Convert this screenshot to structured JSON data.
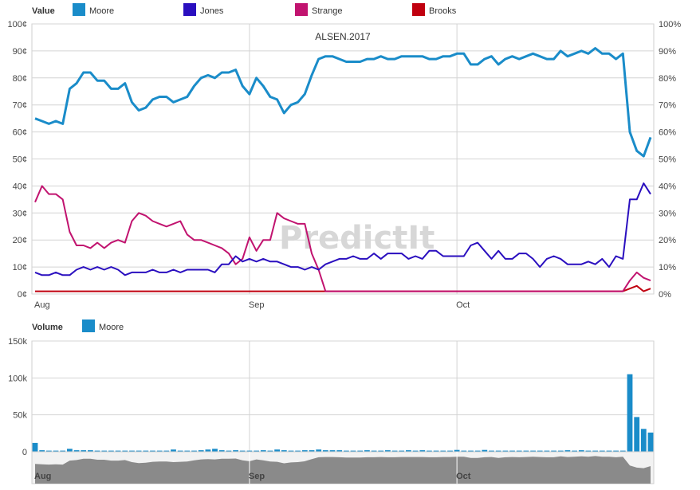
{
  "chart_data": [
    {
      "type": "line",
      "title": "ALSEN.2017",
      "legend_title": "Value",
      "legend_position": "top-left",
      "watermark": "PredictIt",
      "grid": true,
      "ylim": [
        0,
        100
      ],
      "y_ticks_left": [
        "0¢",
        "10¢",
        "20¢",
        "30¢",
        "40¢",
        "50¢",
        "60¢",
        "70¢",
        "80¢",
        "90¢",
        "100¢"
      ],
      "y_ticks_right": [
        "0%",
        "10%",
        "20%",
        "30%",
        "40%",
        "50%",
        "60%",
        "70%",
        "80%",
        "90%",
        "100%"
      ],
      "x_labels": [
        {
          "label": "Aug",
          "x": 0
        },
        {
          "label": "Sep",
          "x": 31
        },
        {
          "label": "Oct",
          "x": 61
        }
      ],
      "xlim": [
        0,
        89
      ],
      "series": [
        {
          "name": "Moore",
          "color": "#1a8cc9",
          "width": 3,
          "values": [
            65,
            64,
            63,
            64,
            63,
            76,
            78,
            82,
            82,
            79,
            79,
            76,
            76,
            78,
            71,
            68,
            69,
            72,
            73,
            73,
            71,
            72,
            73,
            77,
            80,
            81,
            80,
            82,
            82,
            83,
            77,
            74,
            80,
            77,
            73,
            72,
            67,
            70,
            71,
            74,
            81,
            87,
            88,
            88,
            87,
            86,
            86,
            86,
            87,
            87,
            88,
            87,
            87,
            88,
            88,
            88,
            88,
            87,
            87,
            88,
            88,
            89,
            89,
            85,
            85,
            87,
            88,
            85,
            87,
            88,
            87,
            88,
            89,
            88,
            87,
            87,
            90,
            88,
            89,
            90,
            89,
            91,
            89,
            89,
            87,
            89,
            60,
            53,
            51,
            58
          ]
        },
        {
          "name": "Jones",
          "color": "#2a0fbf",
          "width": 2,
          "values": [
            8,
            7,
            7,
            8,
            7,
            7,
            9,
            10,
            9,
            10,
            9,
            10,
            9,
            7,
            8,
            8,
            8,
            9,
            8,
            8,
            9,
            8,
            9,
            9,
            9,
            9,
            8,
            11,
            11,
            14,
            12,
            13,
            12,
            13,
            12,
            12,
            11,
            10,
            10,
            9,
            10,
            9,
            11,
            12,
            13,
            13,
            14,
            13,
            13,
            15,
            13,
            15,
            15,
            15,
            13,
            14,
            13,
            16,
            16,
            14,
            14,
            14,
            14,
            18,
            19,
            16,
            13,
            16,
            13,
            13,
            15,
            15,
            13,
            10,
            13,
            14,
            13,
            11,
            11,
            11,
            12,
            11,
            13,
            10,
            14,
            13,
            35,
            35,
            41,
            37
          ]
        },
        {
          "name": "Strange",
          "color": "#c1136f",
          "width": 2,
          "values": [
            34,
            40,
            37,
            37,
            35,
            23,
            18,
            18,
            17,
            19,
            17,
            19,
            20,
            19,
            27,
            30,
            29,
            27,
            26,
            25,
            26,
            27,
            22,
            20,
            20,
            19,
            18,
            17,
            15,
            11,
            13,
            21,
            16,
            20,
            20,
            30,
            28,
            27,
            26,
            26,
            15,
            9,
            1,
            1,
            1,
            1,
            1,
            1,
            1,
            1,
            1,
            1,
            1,
            1,
            1,
            1,
            1,
            1,
            1,
            1,
            1,
            1,
            1,
            1,
            1,
            1,
            1,
            1,
            1,
            1,
            1,
            1,
            1,
            1,
            1,
            1,
            1,
            1,
            1,
            1,
            1,
            1,
            1,
            1,
            1,
            1,
            5,
            8,
            6,
            5
          ]
        },
        {
          "name": "Brooks",
          "color": "#c0000f",
          "width": 2,
          "values": [
            1,
            1,
            1,
            1,
            1,
            1,
            1,
            1,
            1,
            1,
            1,
            1,
            1,
            1,
            1,
            1,
            1,
            1,
            1,
            1,
            1,
            1,
            1,
            1,
            1,
            1,
            1,
            1,
            1,
            1,
            1,
            1,
            1,
            1,
            1,
            1,
            1,
            1,
            1,
            1,
            1,
            1,
            1,
            1,
            1,
            1,
            1,
            1,
            1,
            1,
            1,
            1,
            1,
            1,
            1,
            1,
            1,
            1,
            1,
            1,
            1,
            1,
            1,
            1,
            1,
            1,
            1,
            1,
            1,
            1,
            1,
            1,
            1,
            1,
            1,
            1,
            1,
            1,
            1,
            1,
            1,
            1,
            1,
            1,
            1,
            1,
            2,
            3,
            1,
            2
          ]
        }
      ]
    },
    {
      "type": "bar",
      "legend_title": "Volume",
      "legend_position": "top-left",
      "grid": true,
      "ylim": [
        0,
        150000
      ],
      "y_ticks": [
        "0",
        "50k",
        "100k",
        "150k"
      ],
      "x_labels": [
        {
          "label": "Aug",
          "x": 0
        },
        {
          "label": "Sep",
          "x": 31
        },
        {
          "label": "Oct",
          "x": 61
        }
      ],
      "xlim": [
        0,
        89
      ],
      "series": [
        {
          "name": "Moore",
          "color": "#1a8cc9",
          "values": [
            12000,
            2000,
            1500,
            1500,
            1500,
            4000,
            2000,
            2000,
            2000,
            1500,
            1500,
            1500,
            1500,
            1500,
            1500,
            1500,
            1500,
            1500,
            1500,
            1500,
            3000,
            1500,
            1500,
            1500,
            2000,
            3000,
            4000,
            2000,
            1500,
            2000,
            1500,
            1500,
            1500,
            2000,
            1500,
            3000,
            2000,
            1500,
            1500,
            2000,
            2000,
            3000,
            2000,
            2000,
            2000,
            1500,
            1500,
            1500,
            2000,
            1500,
            1500,
            2000,
            1500,
            1500,
            2000,
            1500,
            2000,
            1500,
            1500,
            1500,
            1500,
            2500,
            1500,
            1500,
            1500,
            2500,
            1500,
            1500,
            1500,
            1500,
            1500,
            1500,
            1500,
            1500,
            1500,
            1500,
            1500,
            2000,
            1500,
            2000,
            1500,
            1500,
            1500,
            1500,
            1500,
            1500,
            105000,
            47000,
            31000,
            26000
          ]
        }
      ]
    }
  ],
  "navigator": {
    "color": "#8a8a8a",
    "x_labels": [
      {
        "label": "Aug",
        "x": 0
      },
      {
        "label": "Sep",
        "x": 31
      },
      {
        "label": "Oct",
        "x": 61
      }
    ]
  }
}
